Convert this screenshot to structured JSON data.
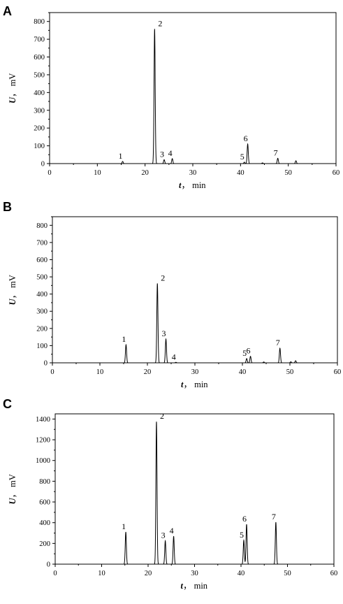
{
  "chart_data": [
    {
      "panel": "A",
      "type": "line",
      "xlabel_var": "t",
      "xlabel_unit": "min",
      "ylabel_var": "U",
      "ylabel_unit": "mV",
      "xlim": [
        0,
        60
      ],
      "ylim": [
        0,
        850
      ],
      "xticks": [
        0,
        10,
        20,
        30,
        40,
        50,
        60
      ],
      "yticks": [
        0,
        100,
        200,
        300,
        400,
        500,
        600,
        700,
        800
      ],
      "peaks": [
        {
          "label": "1",
          "x": 15.3,
          "y": 12
        },
        {
          "label": "2",
          "x": 22.0,
          "y": 758
        },
        {
          "label": "3",
          "x": 24.0,
          "y": 22
        },
        {
          "label": "4",
          "x": 25.7,
          "y": 28
        },
        {
          "label": "5",
          "x": 40.8,
          "y": 8
        },
        {
          "label": "6",
          "x": 41.5,
          "y": 110
        },
        {
          "label": "7",
          "x": 47.8,
          "y": 30
        }
      ],
      "minor_peaks": [
        {
          "x": 44.6,
          "y": 4
        },
        {
          "x": 51.6,
          "y": 16
        }
      ]
    },
    {
      "panel": "B",
      "type": "line",
      "xlabel_var": "t",
      "xlabel_unit": "min",
      "ylabel_var": "U",
      "ylabel_unit": "mV",
      "xlim": [
        0,
        60
      ],
      "ylim": [
        0,
        850
      ],
      "xticks": [
        0,
        10,
        20,
        30,
        40,
        50,
        60
      ],
      "yticks": [
        0,
        100,
        200,
        300,
        400,
        500,
        600,
        700,
        800
      ],
      "peaks": [
        {
          "label": "1",
          "x": 15.5,
          "y": 105
        },
        {
          "label": "2",
          "x": 22.1,
          "y": 462
        },
        {
          "label": "3",
          "x": 23.9,
          "y": 138
        },
        {
          "label": "4",
          "x": 26.0,
          "y": 3
        },
        {
          "label": "5",
          "x": 40.9,
          "y": 25
        },
        {
          "label": "6",
          "x": 41.7,
          "y": 38
        },
        {
          "label": "7",
          "x": 47.9,
          "y": 85
        }
      ],
      "minor_peaks": [
        {
          "x": 44.5,
          "y": 5
        },
        {
          "x": 50.2,
          "y": 6
        },
        {
          "x": 51.2,
          "y": 12
        }
      ]
    },
    {
      "panel": "C",
      "type": "line",
      "xlabel_var": "t",
      "xlabel_unit": "min",
      "ylabel_var": "U",
      "ylabel_unit": "mV",
      "xlim": [
        0,
        60
      ],
      "ylim": [
        0,
        1450
      ],
      "xticks": [
        0,
        10,
        20,
        30,
        40,
        50,
        60
      ],
      "yticks": [
        0,
        200,
        400,
        600,
        800,
        1000,
        1200,
        1400
      ],
      "peaks": [
        {
          "label": "1",
          "x": 15.2,
          "y": 310
        },
        {
          "label": "2",
          "x": 21.8,
          "y": 1375
        },
        {
          "label": "3",
          "x": 23.7,
          "y": 225
        },
        {
          "label": "4",
          "x": 25.5,
          "y": 270
        },
        {
          "label": "5",
          "x": 40.6,
          "y": 230
        },
        {
          "label": "6",
          "x": 41.2,
          "y": 385
        },
        {
          "label": "7",
          "x": 47.5,
          "y": 405
        }
      ],
      "minor_peaks": []
    }
  ]
}
